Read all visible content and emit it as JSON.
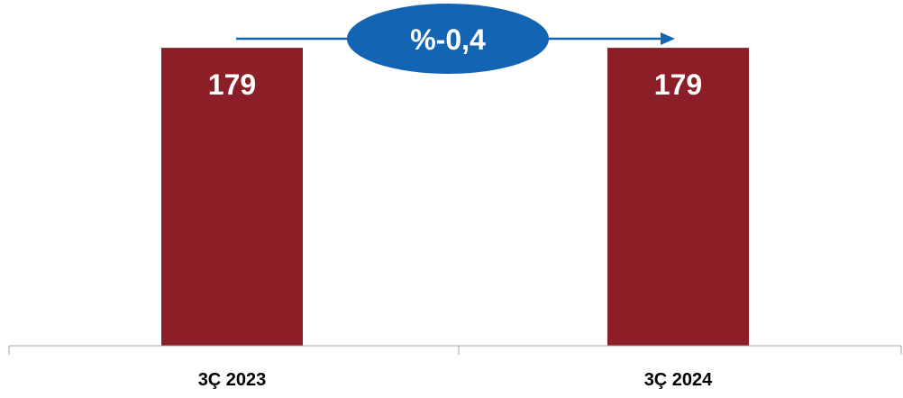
{
  "chart_data": {
    "type": "bar",
    "categories": [
      "3Ç 2023",
      "3Ç 2024"
    ],
    "values": [
      179,
      179
    ],
    "value_labels": [
      "179",
      "179"
    ],
    "change_label": "%-0,4",
    "ylim": [
      0,
      185
    ],
    "grid": false,
    "colors": {
      "bar": "#8B1E26",
      "badge": "#1464B4",
      "arrow": "#1464B4",
      "axis": "#A6A6A6"
    }
  }
}
